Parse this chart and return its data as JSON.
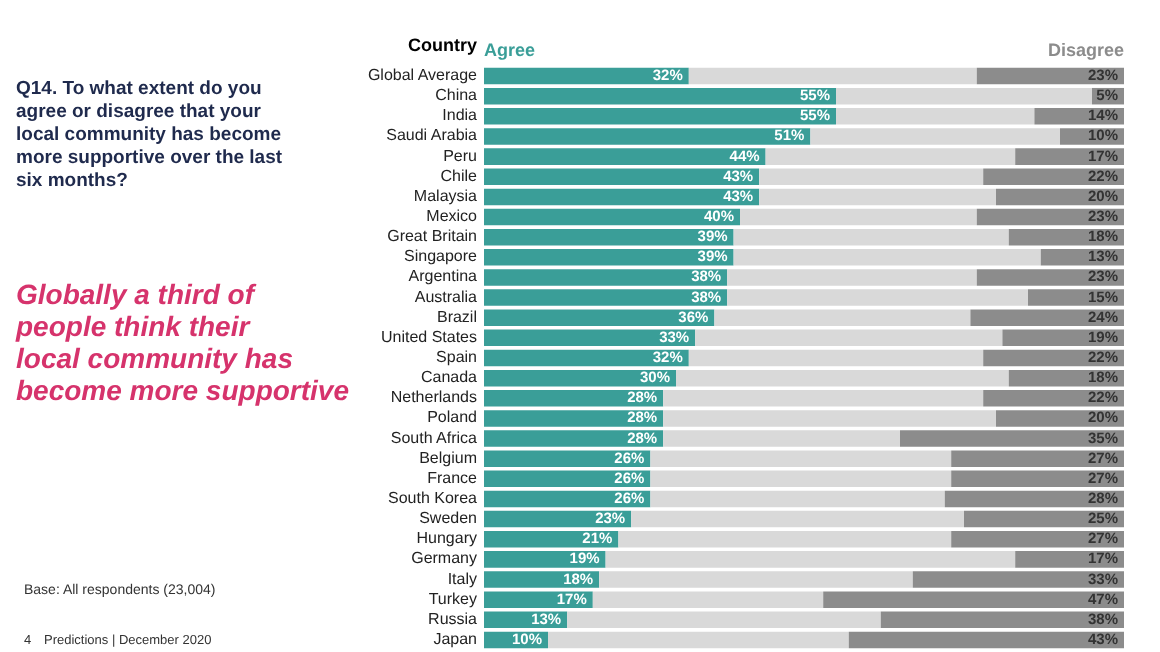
{
  "chart_data": {
    "type": "bar",
    "orientation": "horizontal",
    "stacked": true,
    "title": "Q14. To what extent do you agree or disagree that your local community has become more supportive over the last six months?",
    "subtitle": "Globally a third of people think their local community has become more supportive",
    "ylabel": "Country",
    "annotations": [
      "Base: All respondents (23,004)",
      "4",
      "Predictions | December 2020"
    ],
    "categories": [
      "Global Average",
      "China",
      "India",
      "Saudi Arabia",
      "Peru",
      "Chile",
      "Malaysia",
      "Mexico",
      "Great Britain",
      "Singapore",
      "Argentina",
      "Australia",
      "Brazil",
      "United States",
      "Spain",
      "Canada",
      "Netherlands",
      "Poland",
      "South Africa",
      "Belgium",
      "France",
      "South Korea",
      "Sweden",
      "Hungary",
      "Germany",
      "Italy",
      "Turkey",
      "Russia",
      "Japan"
    ],
    "series": [
      {
        "name": "Agree",
        "color": "#3a9e98",
        "values": [
          32,
          55,
          55,
          51,
          44,
          43,
          43,
          40,
          39,
          39,
          38,
          38,
          36,
          33,
          32,
          30,
          28,
          28,
          28,
          26,
          26,
          26,
          23,
          21,
          19,
          18,
          17,
          13,
          10
        ],
        "value_labels": [
          "32%",
          "55%",
          "55%",
          "51%",
          "44%",
          "43%",
          "43%",
          "40%",
          "39%",
          "39%",
          "38%",
          "38%",
          "36%",
          "33%",
          "32%",
          "30%",
          "28%",
          "28%",
          "28%",
          "26%",
          "26%",
          "26%",
          "23%",
          "21%",
          "19%",
          "18%",
          "17%",
          "13%",
          "10%"
        ]
      },
      {
        "color": "#d9d9d9",
        "values": [
          45,
          40,
          31,
          39,
          39,
          35,
          37,
          37,
          43,
          48,
          39,
          47,
          40,
          48,
          46,
          52,
          50,
          52,
          37,
          47,
          47,
          46,
          52,
          52,
          64,
          49,
          36,
          49,
          47
        ]
      },
      {
        "name": "Disagree",
        "color": "#8c8c8c",
        "values": [
          23,
          5,
          14,
          10,
          17,
          22,
          20,
          23,
          18,
          13,
          23,
          15,
          24,
          19,
          22,
          18,
          22,
          20,
          35,
          27,
          27,
          28,
          25,
          27,
          17,
          33,
          47,
          38,
          43
        ],
        "value_labels": [
          "23%",
          "5%",
          "14%",
          "10%",
          "17%",
          "22%",
          "20%",
          "23%",
          "18%",
          "13%",
          "23%",
          "15%",
          "24%",
          "19%",
          "22%",
          "18%",
          "22%",
          "20%",
          "35%",
          "27%",
          "27%",
          "28%",
          "25%",
          "27%",
          "17%",
          "33%",
          "47%",
          "38%",
          "43%"
        ]
      }
    ]
  }
}
